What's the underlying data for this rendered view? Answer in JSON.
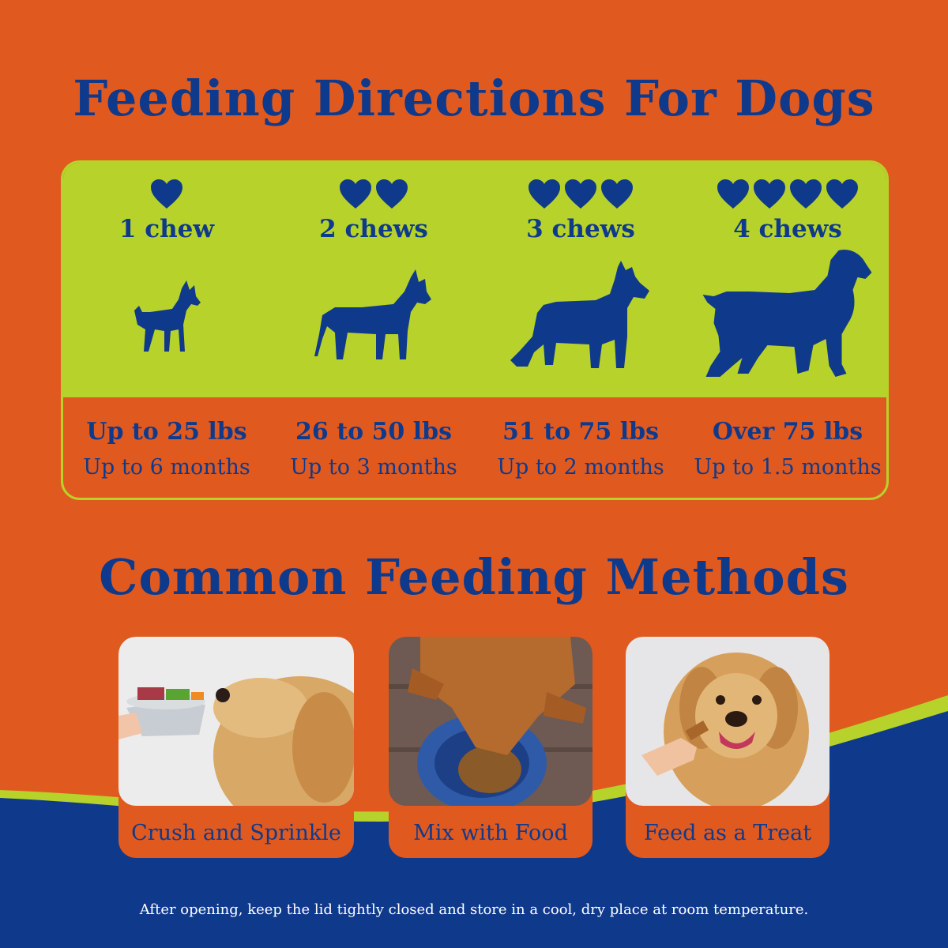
{
  "title": "Feeding Directions For Dogs",
  "directions": [
    {
      "chews": "1 chew",
      "hearts": 1,
      "weight": "Up to 25 lbs",
      "duration": "Up to 6 months"
    },
    {
      "chews": "2 chews",
      "hearts": 2,
      "weight": "26 to 50 lbs",
      "duration": "Up to 3 months"
    },
    {
      "chews": "3 chews",
      "hearts": 3,
      "weight": "51 to 75 lbs",
      "duration": "Up to 2 months"
    },
    {
      "chews": "4 chews",
      "hearts": 4,
      "weight": "Over 75 lbs",
      "duration": "Up to 1.5 months"
    }
  ],
  "methods_title": "Common Feeding Methods",
  "methods": [
    {
      "label": "Crush and Sprinkle"
    },
    {
      "label": "Mix with Food"
    },
    {
      "label": "Feed as a Treat"
    }
  ],
  "footer": "After opening, keep the lid tightly closed and store in a cool, dry place at room temperature.",
  "colors": {
    "background": "#e05a1f",
    "accent_green": "#b7d22a",
    "navy": "#0f3a8c"
  }
}
